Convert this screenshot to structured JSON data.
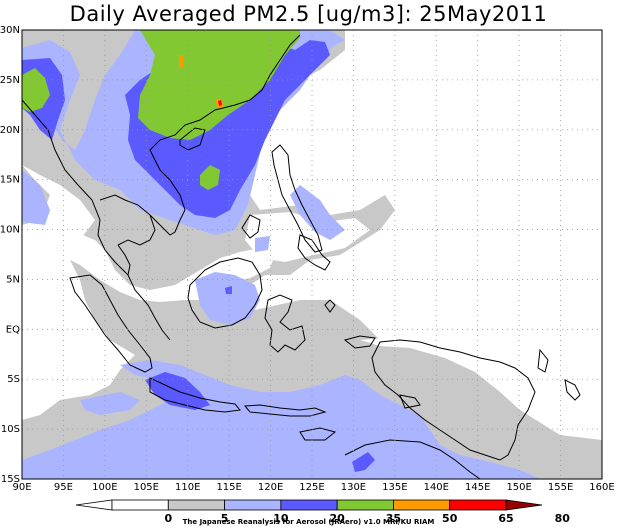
{
  "title": "Daily Averaged PM2.5 [ug/m3]: 25May2011",
  "credit": "The Japanese Reanalysis for Aerosol (JRAero) v1.0 MRI/KU RIAM",
  "axes": {
    "x_ticks": [
      "90E",
      "95E",
      "100E",
      "105E",
      "110E",
      "115E",
      "120E",
      "125E",
      "130E",
      "135E",
      "140E",
      "145E",
      "150E",
      "155E",
      "160E"
    ],
    "y_ticks": [
      "30N",
      "25N",
      "20N",
      "15N",
      "10N",
      "5N",
      "EQ",
      "5S",
      "10S",
      "15S"
    ]
  },
  "colorbar": {
    "levels": [
      "0",
      "5",
      "10",
      "20",
      "35",
      "50",
      "65",
      "80"
    ],
    "colors": [
      "#ffffff",
      "#ffffff",
      "#c8c8c8",
      "#aab4ff",
      "#5a5aff",
      "#82c832",
      "#ff9b00",
      "#ff0000",
      "#960000"
    ]
  },
  "colors": {
    "light_gray": "#c8c8c8",
    "lavender": "#aab4ff",
    "blue": "#5a5aff",
    "green": "#82c832",
    "orange": "#ff9b00",
    "red": "#ff0000"
  }
}
